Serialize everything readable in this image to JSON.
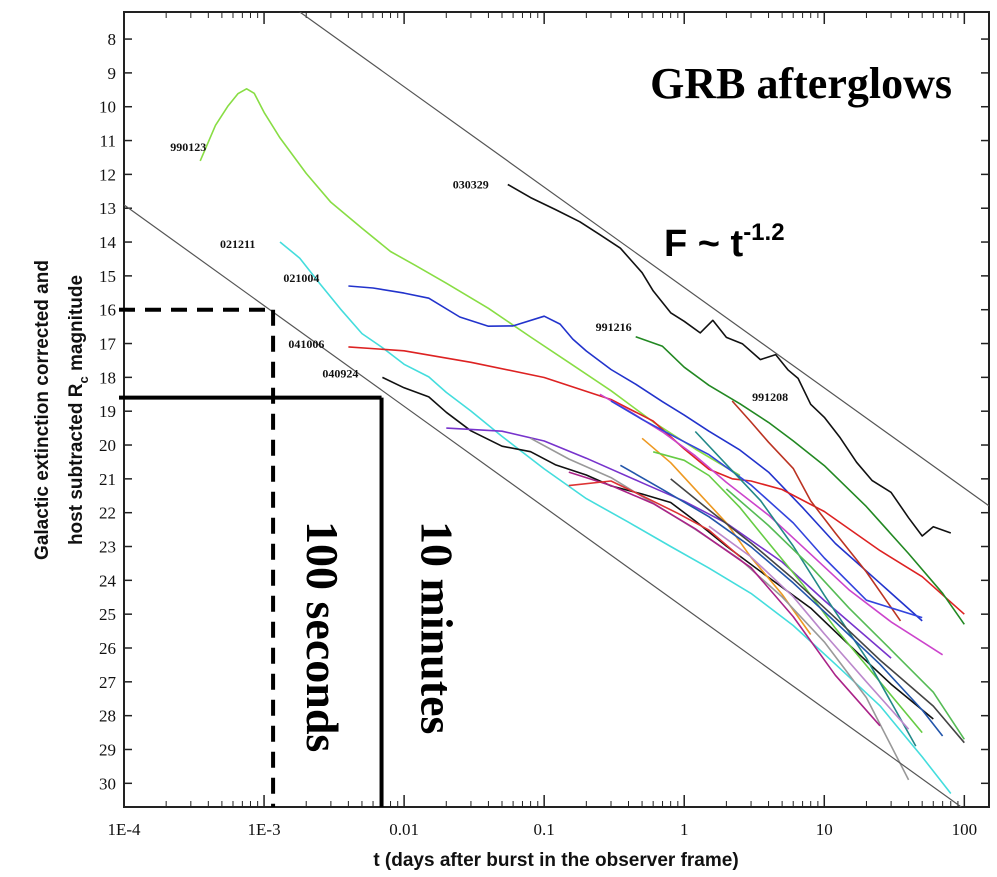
{
  "chart_data": {
    "type": "line",
    "title": "GRB afterglows",
    "xlabel": "t (days after burst in the observer frame)",
    "ylabel_line1": "Galactic extinction corrected and",
    "ylabel_line2_pre": "host subtracted R",
    "ylabel_line2_sub": "c",
    "ylabel_line2_post": " magnitude",
    "x_scale": "log",
    "xlim": [
      0.0001,
      150
    ],
    "ylim": [
      30.7,
      7.2
    ],
    "y_inverted": true,
    "x_ticks": [
      "1E-4",
      "1E-3",
      "0.01",
      "0.1",
      "1",
      "10",
      "100"
    ],
    "x_tick_values": [
      0.0001,
      0.001,
      0.01,
      0.1,
      1,
      10,
      100
    ],
    "y_ticks": [
      8,
      9,
      10,
      11,
      12,
      13,
      14,
      15,
      16,
      17,
      18,
      19,
      20,
      21,
      22,
      23,
      24,
      25,
      26,
      27,
      28,
      29,
      30
    ],
    "power_law_label": "F ~  t",
    "power_law_exponent": "-1.2",
    "power_law_lines": [
      {
        "x": [
          0.0018,
          150
        ],
        "y": [
          7.2,
          21.8
        ]
      },
      {
        "x": [
          0.0001,
          95
        ],
        "y": [
          12.9,
          30.7
        ]
      }
    ],
    "markers": [
      {
        "label": "100 seconds",
        "x": 0.00116,
        "y": 16.0,
        "style": "dashed"
      },
      {
        "label": "10 minutes",
        "x": 0.0069,
        "y": 18.6,
        "style": "solid"
      }
    ],
    "series": [
      {
        "name": "990123",
        "color": "#88dd44",
        "x": [
          0.00035,
          0.00045,
          0.00055,
          0.00065,
          0.00075,
          0.00085,
          0.001,
          0.0013,
          0.002,
          0.003,
          0.005,
          0.008,
          0.012,
          0.02,
          0.04,
          0.08,
          0.15,
          0.3,
          0.6,
          1.2,
          2.5
        ],
        "y": [
          11.6,
          10.5,
          9.9,
          9.5,
          9.35,
          9.5,
          10.1,
          10.9,
          12.0,
          12.9,
          13.7,
          14.4,
          14.8,
          15.3,
          16.0,
          16.8,
          17.5,
          18.3,
          19.2,
          20.0,
          20.9
        ]
      },
      {
        "name": "030329",
        "color": "#111111",
        "x": [
          0.055,
          0.08,
          0.12,
          0.18,
          0.25,
          0.35,
          0.5,
          0.6,
          0.8,
          1.0,
          1.3,
          1.6,
          2.0,
          2.6,
          3.5,
          4.5,
          5.5,
          6.5,
          8,
          10,
          13,
          17,
          22,
          30,
          40,
          50,
          60,
          80
        ],
        "y": [
          12.3,
          12.7,
          13.1,
          13.5,
          13.9,
          14.3,
          15.0,
          15.5,
          16.1,
          16.3,
          16.6,
          16.2,
          16.7,
          16.9,
          17.4,
          17.3,
          17.8,
          18.1,
          18.9,
          19.3,
          19.9,
          20.6,
          21.1,
          21.4,
          22.1,
          22.6,
          22.3,
          22.6
        ]
      },
      {
        "name": "021211",
        "color": "#44dddd",
        "x": [
          0.0013,
          0.0018,
          0.0025,
          0.0035,
          0.005,
          0.007,
          0.01,
          0.015,
          0.02,
          0.03,
          0.05,
          0.1,
          0.2,
          0.4,
          0.8,
          1.5,
          3,
          6,
          12,
          25,
          50,
          80
        ],
        "y": [
          14.0,
          14.5,
          15.2,
          15.9,
          16.6,
          17.0,
          17.5,
          17.9,
          18.4,
          19.0,
          19.8,
          20.8,
          21.7,
          22.4,
          23.1,
          23.7,
          24.4,
          25.3,
          26.4,
          27.6,
          29.1,
          30.3
        ]
      },
      {
        "name": "021004",
        "color": "#2233cc",
        "x": [
          0.004,
          0.006,
          0.01,
          0.015,
          0.025,
          0.04,
          0.06,
          0.1,
          0.13,
          0.16,
          0.2,
          0.3,
          0.45,
          0.7,
          1.0,
          1.5,
          2.5,
          4,
          7,
          12,
          25,
          50
        ],
        "y": [
          15.3,
          15.3,
          15.5,
          15.7,
          16.3,
          16.6,
          16.6,
          16.3,
          16.5,
          16.9,
          17.2,
          17.7,
          18.1,
          18.6,
          19.0,
          19.5,
          20.1,
          20.8,
          21.9,
          23.0,
          24.2,
          25.2
        ]
      },
      {
        "name": "041006",
        "color": "#dd2222",
        "x": [
          0.004,
          0.01,
          0.03,
          0.1,
          0.3,
          0.6,
          1.0,
          1.5,
          2.2,
          3,
          5,
          10,
          25,
          50,
          100
        ],
        "y": [
          17.1,
          17.3,
          17.6,
          18.0,
          18.6,
          19.2,
          20.0,
          20.6,
          20.9,
          21.0,
          21.3,
          22.0,
          23.2,
          24.0,
          25.0
        ]
      },
      {
        "name": "040924",
        "color": "#111111",
        "x": [
          0.007,
          0.01,
          0.015,
          0.02,
          0.03,
          0.05,
          0.08,
          0.12,
          0.2,
          0.3,
          0.5,
          0.8,
          1.2,
          2,
          4,
          8,
          15,
          30,
          60
        ],
        "y": [
          18.0,
          18.2,
          18.5,
          19.0,
          19.6,
          20.1,
          20.3,
          20.7,
          21.0,
          21.3,
          21.5,
          21.7,
          22.2,
          22.9,
          23.8,
          24.7,
          25.8,
          27.0,
          28.1
        ]
      },
      {
        "name": "991216",
        "color": "#228822",
        "x": [
          0.45,
          0.7,
          1.0,
          1.5,
          2.5,
          4,
          6,
          10,
          20,
          40,
          70,
          100
        ],
        "y": [
          16.8,
          17.2,
          17.8,
          18.3,
          18.8,
          19.3,
          19.8,
          20.5,
          21.7,
          23.1,
          24.3,
          25.3
        ]
      },
      {
        "name": "991208",
        "color": "#bb3322",
        "x": [
          2.2,
          3,
          4,
          6,
          8,
          12,
          20,
          35
        ],
        "y": [
          18.7,
          19.2,
          19.8,
          20.6,
          21.6,
          22.6,
          23.8,
          25.2
        ]
      },
      {
        "name": "",
        "color": "#7733cc",
        "x": [
          0.02,
          0.05,
          0.1,
          0.2,
          0.5,
          1,
          2,
          5,
          10,
          30
        ],
        "y": [
          19.5,
          19.7,
          20.0,
          20.5,
          21.2,
          21.7,
          22.3,
          23.4,
          24.5,
          26.3
        ]
      },
      {
        "name": "",
        "color": "#cc44cc",
        "x": [
          0.25,
          0.4,
          0.7,
          1.2,
          2,
          4,
          8,
          15,
          30,
          70
        ],
        "y": [
          18.5,
          18.9,
          19.5,
          20.2,
          21.0,
          22.0,
          23.2,
          24.3,
          25.3,
          26.2
        ]
      },
      {
        "name": "",
        "color": "#3344dd",
        "x": [
          0.3,
          0.5,
          0.9,
          1.5,
          3,
          6,
          10,
          20,
          50
        ],
        "y": [
          18.7,
          19.3,
          19.9,
          20.4,
          21.3,
          22.4,
          23.4,
          24.6,
          25.1
        ]
      },
      {
        "name": "",
        "color": "#ee9922",
        "x": [
          0.5,
          0.8,
          1.3,
          2,
          3,
          5,
          8
        ],
        "y": [
          19.8,
          20.5,
          21.4,
          22.2,
          23.2,
          24.3,
          25.6
        ]
      },
      {
        "name": "",
        "color": "#999999",
        "x": [
          0.08,
          0.15,
          0.3,
          0.6,
          1.2,
          2.5,
          5,
          10,
          20,
          40
        ],
        "y": [
          19.8,
          20.4,
          21.0,
          21.8,
          22.6,
          23.5,
          24.6,
          25.9,
          27.5,
          29.9
        ]
      },
      {
        "name": "",
        "color": "#66cc44",
        "x": [
          0.6,
          1,
          1.5,
          2.5,
          4,
          7,
          12,
          25,
          50
        ],
        "y": [
          20.2,
          20.5,
          20.9,
          21.8,
          22.8,
          24.0,
          25.3,
          26.9,
          28.5
        ]
      },
      {
        "name": "",
        "color": "#228888",
        "x": [
          1.2,
          2,
          3.5,
          6,
          10,
          20,
          45
        ],
        "y": [
          19.6,
          20.5,
          21.6,
          23.0,
          24.5,
          26.4,
          28.9
        ]
      },
      {
        "name": "",
        "color": "#aa2288",
        "x": [
          0.15,
          0.3,
          0.6,
          1.2,
          3,
          6,
          12,
          25
        ],
        "y": [
          20.8,
          21.3,
          21.8,
          22.5,
          23.6,
          25.0,
          26.7,
          28.3
        ]
      },
      {
        "name": "",
        "color": "#444444",
        "x": [
          0.8,
          1.5,
          3,
          6,
          12,
          25,
          60,
          100
        ],
        "y": [
          21.0,
          21.8,
          22.8,
          23.9,
          25.1,
          26.4,
          27.8,
          28.8
        ]
      },
      {
        "name": "",
        "color": "#55bb55",
        "x": [
          2,
          4,
          8,
          15,
          30,
          60,
          100
        ],
        "y": [
          21.3,
          22.5,
          23.7,
          24.9,
          26.1,
          27.3,
          28.7
        ]
      },
      {
        "name": "",
        "color": "#2255aa",
        "x": [
          0.35,
          0.7,
          1.5,
          3,
          6,
          12,
          25,
          50,
          70
        ],
        "y": [
          20.6,
          21.2,
          22.0,
          22.9,
          24.0,
          25.2,
          26.5,
          27.9,
          28.6
        ]
      },
      {
        "name": "",
        "color": "#bb88cc",
        "x": [
          1.5,
          3,
          6,
          10,
          20,
          40
        ],
        "y": [
          22.4,
          23.4,
          24.6,
          25.7,
          27.1,
          28.4
        ]
      },
      {
        "name": "",
        "color": "#dd3333",
        "x": [
          0.15,
          0.3,
          0.5,
          0.9,
          1.5,
          2.5
        ],
        "y": [
          21.2,
          21.0,
          21.4,
          21.9,
          22.4,
          23.3
        ]
      }
    ]
  }
}
